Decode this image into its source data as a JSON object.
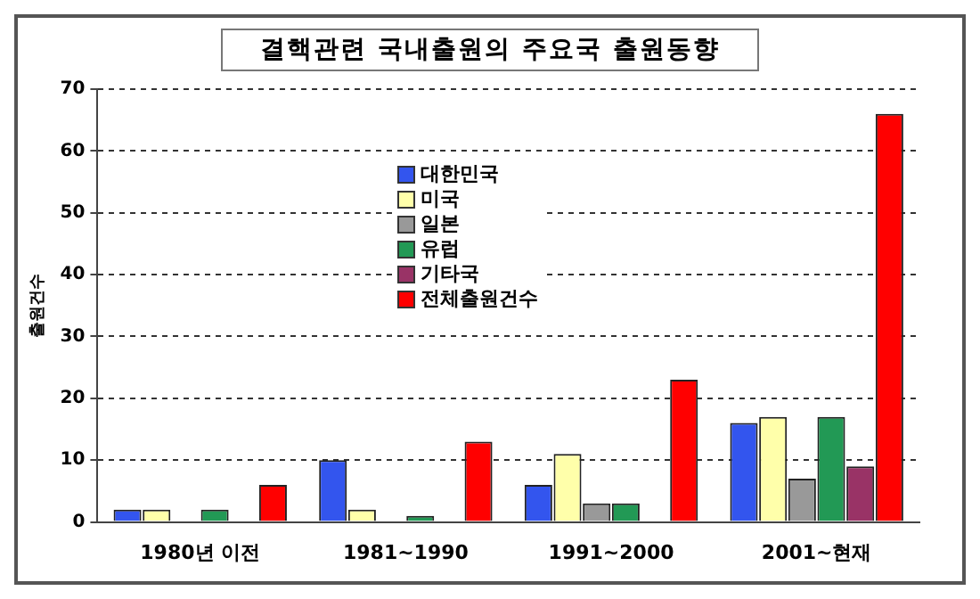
{
  "chart_data": {
    "type": "bar",
    "title": "결핵관련 국내출원의 주요국 출원동향",
    "ylabel": "출원건수",
    "categories": [
      "1980년 이전",
      "1981~1990",
      "1991~2000",
      "2001~현재"
    ],
    "series": [
      {
        "name": "대한민국",
        "color": "#3355ee",
        "values": [
          2,
          10,
          6,
          16
        ]
      },
      {
        "name": "미국",
        "color": "#ffffaa",
        "values": [
          2,
          2,
          11,
          17
        ]
      },
      {
        "name": "일본",
        "color": "#999999",
        "values": [
          0,
          0,
          3,
          7
        ]
      },
      {
        "name": "유럽",
        "color": "#229955",
        "values": [
          2,
          1,
          3,
          17
        ]
      },
      {
        "name": "기타국",
        "color": "#993366",
        "values": [
          0,
          0,
          0,
          9
        ]
      },
      {
        "name": "전체출원건수",
        "color": "#ff0000",
        "values": [
          6,
          13,
          23,
          66
        ]
      }
    ],
    "ylim": [
      0,
      70
    ],
    "yticks": [
      0,
      10,
      20,
      30,
      40,
      50,
      60,
      70
    ],
    "grid": "y",
    "legend": "top left"
  }
}
